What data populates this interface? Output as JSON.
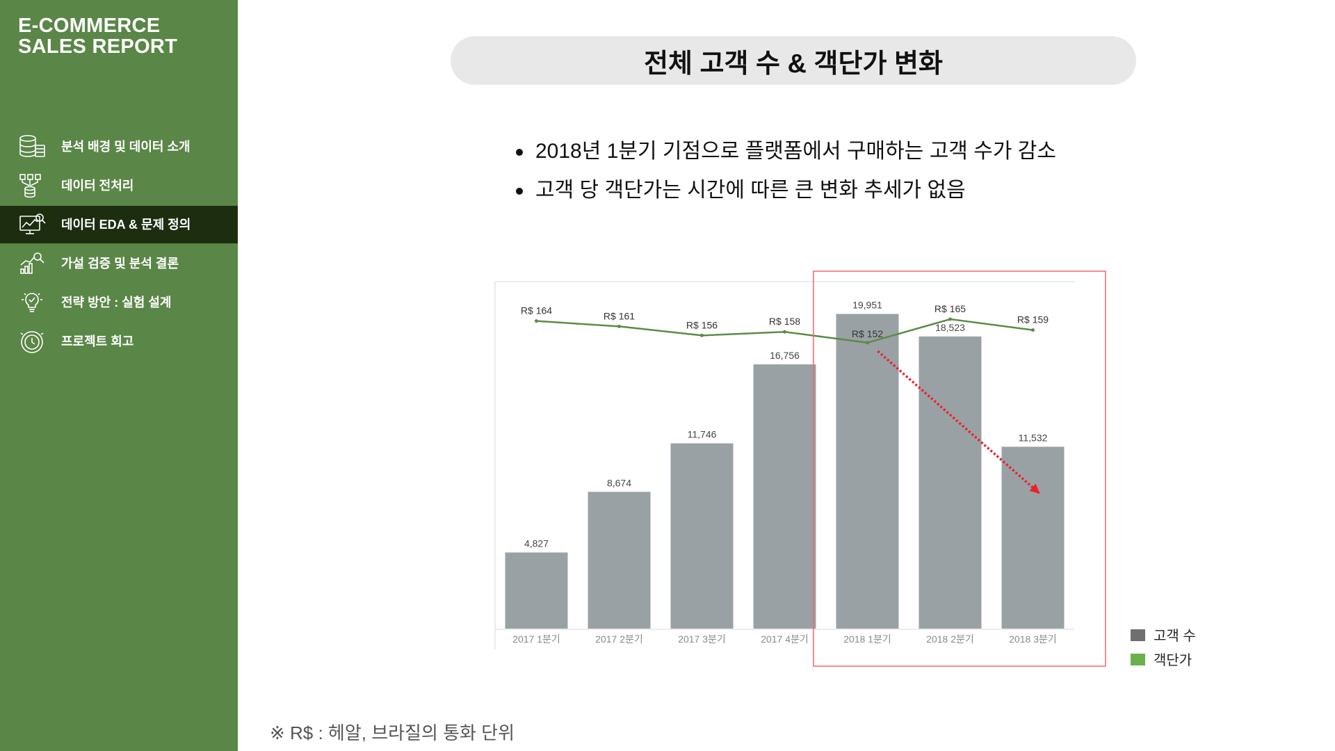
{
  "sidebar": {
    "brand_line1": "E-COMMERCE",
    "brand_line2": "SALES REPORT",
    "items": [
      {
        "label": "분석 배경 및 데이터 소개",
        "icon": "database-icon",
        "active": false
      },
      {
        "label": "데이터 전처리",
        "icon": "data-funnel-icon",
        "active": false
      },
      {
        "label": "데이터 EDA & 문제 정의",
        "icon": "analytics-monitor-icon",
        "active": true
      },
      {
        "label": "가설 검증 및 분석 결론",
        "icon": "chart-search-icon",
        "active": false
      },
      {
        "label": "전략 방안 : 실험 설계",
        "icon": "lightbulb-icon",
        "active": false
      },
      {
        "label": "프로젝트 회고",
        "icon": "clock-icon",
        "active": false
      }
    ]
  },
  "main": {
    "title": "전체 고객 수 & 객단가 변화",
    "bullets": [
      "2018년 1분기 기점으로 플랫폼에서 구매하는 고객 수가 감소",
      "고객 당 객단가는 시간에 따른 큰 변화 추세가 없음"
    ],
    "footnote": "※ R$  : 헤알, 브라질의 통화 단위"
  },
  "colors": {
    "sidebar_bg": "#5a8647",
    "sidebar_active_bg": "#1c2e0f",
    "bar": "#9aa1a5",
    "line": "#5b8c45",
    "highlight_box": "#f2676b",
    "trend_arrow": "#e8232b",
    "legend_bar": "#6f6f6f",
    "legend_line": "#6ab04c"
  },
  "chart_data": {
    "type": "bar",
    "categories": [
      "2017 1분기",
      "2017 2분기",
      "2017 3분기",
      "2017 4분기",
      "2018 1분기",
      "2018 2분기",
      "2018 3분기"
    ],
    "series": [
      {
        "name": "고객 수",
        "type": "bar",
        "values": [
          4827,
          8674,
          11746,
          16756,
          19951,
          18523,
          11532
        ],
        "labels": [
          "4,827",
          "8,674",
          "11,746",
          "16,756",
          "19,951",
          "18,523",
          "11,532"
        ]
      },
      {
        "name": "객단가",
        "type": "line",
        "values": [
          164,
          161,
          156,
          158,
          152,
          165,
          159
        ],
        "labels": [
          "R$ 164",
          "R$ 161",
          "R$ 156",
          "R$ 158",
          "R$ 152",
          "R$ 165",
          "R$ 159"
        ]
      }
    ],
    "legend_position": "bottom-right",
    "highlight_categories": [
      "2018 1분기",
      "2018 2분기",
      "2018 3분기"
    ],
    "annotation": "decreasing trend arrow over 2018 quarters"
  }
}
